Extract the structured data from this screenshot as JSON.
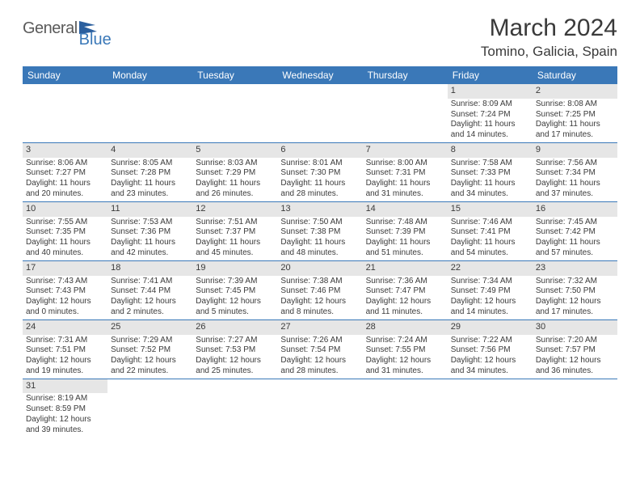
{
  "brand": {
    "name1": "General",
    "name2": "Blue"
  },
  "title": "March 2024",
  "location": "Tomino, Galicia, Spain",
  "colors": {
    "header_bg": "#3a78b8",
    "header_text": "#ffffff",
    "daynum_bg": "#e6e6e6",
    "text": "#3a3a3a",
    "row_border": "#3a78b8"
  },
  "daysOfWeek": [
    "Sunday",
    "Monday",
    "Tuesday",
    "Wednesday",
    "Thursday",
    "Friday",
    "Saturday"
  ],
  "weeks": [
    [
      null,
      null,
      null,
      null,
      null,
      {
        "d": "1",
        "sr": "Sunrise: 8:09 AM",
        "ss": "Sunset: 7:24 PM",
        "dl1": "Daylight: 11 hours",
        "dl2": "and 14 minutes."
      },
      {
        "d": "2",
        "sr": "Sunrise: 8:08 AM",
        "ss": "Sunset: 7:25 PM",
        "dl1": "Daylight: 11 hours",
        "dl2": "and 17 minutes."
      }
    ],
    [
      {
        "d": "3",
        "sr": "Sunrise: 8:06 AM",
        "ss": "Sunset: 7:27 PM",
        "dl1": "Daylight: 11 hours",
        "dl2": "and 20 minutes."
      },
      {
        "d": "4",
        "sr": "Sunrise: 8:05 AM",
        "ss": "Sunset: 7:28 PM",
        "dl1": "Daylight: 11 hours",
        "dl2": "and 23 minutes."
      },
      {
        "d": "5",
        "sr": "Sunrise: 8:03 AM",
        "ss": "Sunset: 7:29 PM",
        "dl1": "Daylight: 11 hours",
        "dl2": "and 26 minutes."
      },
      {
        "d": "6",
        "sr": "Sunrise: 8:01 AM",
        "ss": "Sunset: 7:30 PM",
        "dl1": "Daylight: 11 hours",
        "dl2": "and 28 minutes."
      },
      {
        "d": "7",
        "sr": "Sunrise: 8:00 AM",
        "ss": "Sunset: 7:31 PM",
        "dl1": "Daylight: 11 hours",
        "dl2": "and 31 minutes."
      },
      {
        "d": "8",
        "sr": "Sunrise: 7:58 AM",
        "ss": "Sunset: 7:33 PM",
        "dl1": "Daylight: 11 hours",
        "dl2": "and 34 minutes."
      },
      {
        "d": "9",
        "sr": "Sunrise: 7:56 AM",
        "ss": "Sunset: 7:34 PM",
        "dl1": "Daylight: 11 hours",
        "dl2": "and 37 minutes."
      }
    ],
    [
      {
        "d": "10",
        "sr": "Sunrise: 7:55 AM",
        "ss": "Sunset: 7:35 PM",
        "dl1": "Daylight: 11 hours",
        "dl2": "and 40 minutes."
      },
      {
        "d": "11",
        "sr": "Sunrise: 7:53 AM",
        "ss": "Sunset: 7:36 PM",
        "dl1": "Daylight: 11 hours",
        "dl2": "and 42 minutes."
      },
      {
        "d": "12",
        "sr": "Sunrise: 7:51 AM",
        "ss": "Sunset: 7:37 PM",
        "dl1": "Daylight: 11 hours",
        "dl2": "and 45 minutes."
      },
      {
        "d": "13",
        "sr": "Sunrise: 7:50 AM",
        "ss": "Sunset: 7:38 PM",
        "dl1": "Daylight: 11 hours",
        "dl2": "and 48 minutes."
      },
      {
        "d": "14",
        "sr": "Sunrise: 7:48 AM",
        "ss": "Sunset: 7:39 PM",
        "dl1": "Daylight: 11 hours",
        "dl2": "and 51 minutes."
      },
      {
        "d": "15",
        "sr": "Sunrise: 7:46 AM",
        "ss": "Sunset: 7:41 PM",
        "dl1": "Daylight: 11 hours",
        "dl2": "and 54 minutes."
      },
      {
        "d": "16",
        "sr": "Sunrise: 7:45 AM",
        "ss": "Sunset: 7:42 PM",
        "dl1": "Daylight: 11 hours",
        "dl2": "and 57 minutes."
      }
    ],
    [
      {
        "d": "17",
        "sr": "Sunrise: 7:43 AM",
        "ss": "Sunset: 7:43 PM",
        "dl1": "Daylight: 12 hours",
        "dl2": "and 0 minutes."
      },
      {
        "d": "18",
        "sr": "Sunrise: 7:41 AM",
        "ss": "Sunset: 7:44 PM",
        "dl1": "Daylight: 12 hours",
        "dl2": "and 2 minutes."
      },
      {
        "d": "19",
        "sr": "Sunrise: 7:39 AM",
        "ss": "Sunset: 7:45 PM",
        "dl1": "Daylight: 12 hours",
        "dl2": "and 5 minutes."
      },
      {
        "d": "20",
        "sr": "Sunrise: 7:38 AM",
        "ss": "Sunset: 7:46 PM",
        "dl1": "Daylight: 12 hours",
        "dl2": "and 8 minutes."
      },
      {
        "d": "21",
        "sr": "Sunrise: 7:36 AM",
        "ss": "Sunset: 7:47 PM",
        "dl1": "Daylight: 12 hours",
        "dl2": "and 11 minutes."
      },
      {
        "d": "22",
        "sr": "Sunrise: 7:34 AM",
        "ss": "Sunset: 7:49 PM",
        "dl1": "Daylight: 12 hours",
        "dl2": "and 14 minutes."
      },
      {
        "d": "23",
        "sr": "Sunrise: 7:32 AM",
        "ss": "Sunset: 7:50 PM",
        "dl1": "Daylight: 12 hours",
        "dl2": "and 17 minutes."
      }
    ],
    [
      {
        "d": "24",
        "sr": "Sunrise: 7:31 AM",
        "ss": "Sunset: 7:51 PM",
        "dl1": "Daylight: 12 hours",
        "dl2": "and 19 minutes."
      },
      {
        "d": "25",
        "sr": "Sunrise: 7:29 AM",
        "ss": "Sunset: 7:52 PM",
        "dl1": "Daylight: 12 hours",
        "dl2": "and 22 minutes."
      },
      {
        "d": "26",
        "sr": "Sunrise: 7:27 AM",
        "ss": "Sunset: 7:53 PM",
        "dl1": "Daylight: 12 hours",
        "dl2": "and 25 minutes."
      },
      {
        "d": "27",
        "sr": "Sunrise: 7:26 AM",
        "ss": "Sunset: 7:54 PM",
        "dl1": "Daylight: 12 hours",
        "dl2": "and 28 minutes."
      },
      {
        "d": "28",
        "sr": "Sunrise: 7:24 AM",
        "ss": "Sunset: 7:55 PM",
        "dl1": "Daylight: 12 hours",
        "dl2": "and 31 minutes."
      },
      {
        "d": "29",
        "sr": "Sunrise: 7:22 AM",
        "ss": "Sunset: 7:56 PM",
        "dl1": "Daylight: 12 hours",
        "dl2": "and 34 minutes."
      },
      {
        "d": "30",
        "sr": "Sunrise: 7:20 AM",
        "ss": "Sunset: 7:57 PM",
        "dl1": "Daylight: 12 hours",
        "dl2": "and 36 minutes."
      }
    ],
    [
      {
        "d": "31",
        "sr": "Sunrise: 8:19 AM",
        "ss": "Sunset: 8:59 PM",
        "dl1": "Daylight: 12 hours",
        "dl2": "and 39 minutes."
      },
      null,
      null,
      null,
      null,
      null,
      null
    ]
  ]
}
